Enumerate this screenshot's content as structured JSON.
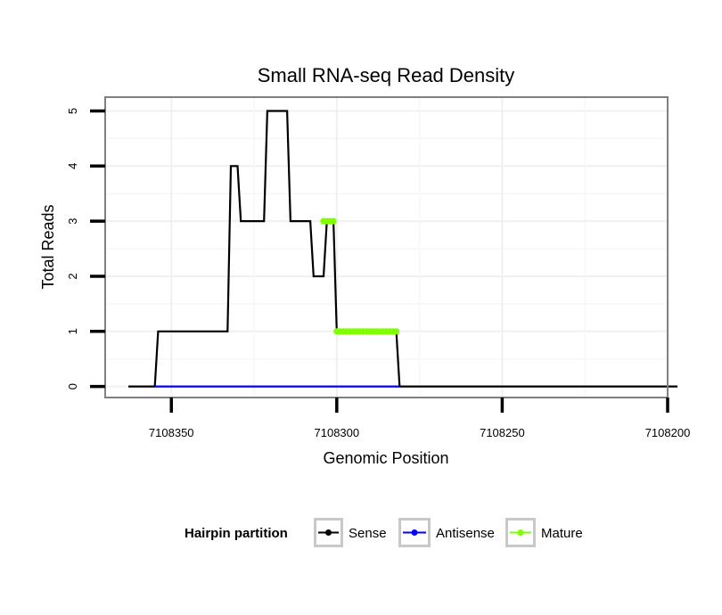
{
  "chart_data": {
    "type": "line",
    "title": "Small RNA-seq Read Density",
    "xlabel": "Genomic Position",
    "ylabel": "Total Reads",
    "xlim": [
      7108370,
      7108200
    ],
    "ylim": [
      -0.2,
      5.25
    ],
    "x_ticks": [
      7108350,
      7108300,
      7108250,
      7108200
    ],
    "x_tick_labels": [
      "7108350",
      "7108300",
      "7108250",
      "7108200"
    ],
    "y_ticks": [
      0,
      1,
      2,
      3,
      4,
      5
    ],
    "y_tick_labels": [
      "0",
      "1",
      "2",
      "3",
      "4",
      "5"
    ],
    "legend": {
      "title": "Hairpin partition",
      "position": "bottom",
      "entries": [
        "Sense",
        "Antisense",
        "Mature"
      ]
    },
    "series": [
      {
        "name": "Sense",
        "color": "#000000",
        "points": [
          [
            7108363,
            0
          ],
          [
            7108355,
            0
          ],
          [
            7108354,
            1
          ],
          [
            7108333,
            1
          ],
          [
            7108332,
            4
          ],
          [
            7108330,
            4
          ],
          [
            7108329,
            3
          ],
          [
            7108322,
            3
          ],
          [
            7108321,
            5
          ],
          [
            7108315,
            5
          ],
          [
            7108314,
            3
          ],
          [
            7108308,
            3
          ],
          [
            7108307,
            2
          ],
          [
            7108304,
            2
          ],
          [
            7108303,
            3
          ],
          [
            7108301,
            3
          ],
          [
            7108300,
            1
          ],
          [
            7108282,
            1
          ],
          [
            7108281,
            0
          ],
          [
            7108197,
            0
          ]
        ]
      },
      {
        "name": "Antisense",
        "color": "#0000ff",
        "points": [
          [
            7108355,
            0
          ],
          [
            7108281,
            0
          ]
        ]
      },
      {
        "name": "Mature",
        "color": "#7fff00",
        "segments": [
          [
            [
              7108304,
              3
            ],
            [
              7108301,
              3
            ]
          ],
          [
            [
              7108300,
              1
            ],
            [
              7108282,
              1
            ]
          ]
        ]
      }
    ]
  }
}
